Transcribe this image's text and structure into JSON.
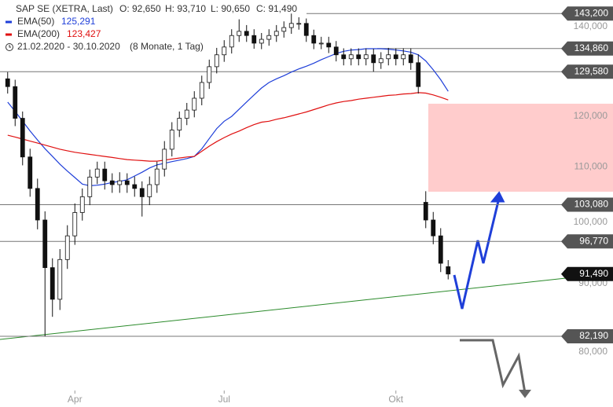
{
  "chart_data": {
    "type": "candlestick",
    "title": "SAP SE (XETRA, Last)",
    "header_labels": [
      "O: 92,650",
      "H: 93,710",
      "L: 90,650",
      "C: 91,490"
    ],
    "range_label": "21.02.2020 - 30.10.2020",
    "range_note": "(8 Monate, 1 Tag)",
    "log_scale": true,
    "ylim": [
      75080,
      146590
    ],
    "yticks": [
      {
        "value": 80000,
        "label": "80,000"
      },
      {
        "value": 90000,
        "label": "90,000"
      },
      {
        "value": 100000,
        "label": "100,000"
      },
      {
        "value": 110000,
        "label": "110,000"
      },
      {
        "value": 120000,
        "label": "120,000"
      },
      {
        "value": 130000,
        "label": "130,000"
      },
      {
        "value": 140000,
        "label": "140,000"
      }
    ],
    "levels": [
      {
        "value": 143200,
        "label": "143,200"
      },
      {
        "value": 134860,
        "label": "134,860"
      },
      {
        "value": 129580,
        "label": "129,580"
      },
      {
        "value": 103080,
        "label": "103,080"
      },
      {
        "value": 96770,
        "label": "96,770"
      },
      {
        "value": 82190,
        "label": "82,190"
      }
    ],
    "last_price": {
      "value": 91490,
      "label": "91,490"
    },
    "categories": [
      null,
      null,
      null,
      null,
      null,
      null,
      null,
      null,
      null,
      "Apr",
      null,
      null,
      null,
      null,
      null,
      null,
      null,
      null,
      null,
      null,
      null,
      null,
      null,
      null,
      null,
      null,
      null,
      null,
      null,
      "Jul",
      null,
      null,
      null,
      null,
      null,
      null,
      null,
      null,
      null,
      null,
      null,
      null,
      null,
      null,
      null,
      null,
      null,
      null,
      null,
      null,
      null,
      null,
      "Okt",
      null,
      null,
      null,
      null,
      null,
      null,
      null
    ],
    "open": [
      128000,
      126300,
      119600,
      111900,
      106000,
      100400,
      92500,
      87600,
      93800,
      97700,
      101700,
      104500,
      108100,
      109600,
      107400,
      106700,
      107400,
      106700,
      106000,
      104500,
      106700,
      109600,
      113400,
      117200,
      119600,
      121300,
      123800,
      127200,
      130700,
      133400,
      135200,
      137900,
      138900,
      137900,
      136100,
      137000,
      137900,
      138900,
      139800,
      140800,
      140800,
      137900,
      136100,
      136100,
      135200,
      133400,
      132500,
      133400,
      132500,
      133400,
      131600,
      132500,
      133400,
      132500,
      133400,
      131600,
      103500,
      100400,
      97700,
      92650
    ],
    "high": [
      129500,
      127800,
      121000,
      113500,
      107800,
      101900,
      94000,
      95500,
      99500,
      103300,
      106000,
      109500,
      111000,
      111000,
      108800,
      109000,
      108800,
      108200,
      107300,
      108200,
      111000,
      115000,
      118800,
      121000,
      122800,
      125300,
      128700,
      132300,
      135000,
      136800,
      139400,
      141800,
      140400,
      139400,
      138500,
      139400,
      140400,
      141300,
      143200,
      142300,
      142000,
      139300,
      137600,
      137600,
      136600,
      134900,
      134900,
      134900,
      134900,
      134800,
      134000,
      135000,
      134900,
      134900,
      134900,
      133500,
      105500,
      101800,
      99000,
      93710
    ],
    "low": [
      124800,
      118000,
      110300,
      104500,
      98800,
      82190,
      85000,
      86000,
      92300,
      96200,
      100300,
      103000,
      106800,
      105800,
      105200,
      105200,
      105200,
      104500,
      101000,
      103000,
      105200,
      108200,
      112000,
      115800,
      118200,
      119800,
      122300,
      125800,
      129200,
      131800,
      133700,
      136400,
      136400,
      134800,
      134700,
      135500,
      136400,
      137400,
      138300,
      139300,
      136400,
      134700,
      134700,
      133800,
      131900,
      131000,
      131000,
      131000,
      131000,
      129580,
      130200,
      131000,
      131000,
      131000,
      130000,
      124800,
      99000,
      96300,
      91800,
      90650
    ],
    "close": [
      126300,
      119600,
      111900,
      106000,
      100400,
      92500,
      87600,
      93800,
      97700,
      101700,
      104500,
      108100,
      109600,
      107400,
      106700,
      107400,
      106700,
      106000,
      104500,
      106700,
      109600,
      113400,
      117200,
      119600,
      121300,
      123800,
      127200,
      130700,
      133400,
      135200,
      137900,
      138900,
      137900,
      136100,
      137000,
      137900,
      138900,
      139800,
      140800,
      140800,
      137900,
      136100,
      136100,
      135200,
      133400,
      132500,
      133400,
      132500,
      133400,
      131600,
      132500,
      133400,
      132500,
      133400,
      131600,
      126300,
      100400,
      97700,
      93200,
      91490
    ],
    "lines": [
      {
        "name": "EMA(50)",
        "color": "#1f3fd9",
        "last_label": "125,291",
        "values": [
          122960,
          121000,
          119000,
          117000,
          115200,
          113500,
          112000,
          110500,
          109200,
          108000,
          106800,
          106500,
          106600,
          106800,
          107100,
          107300,
          107600,
          108300,
          109000,
          109800,
          110400,
          110700,
          111000,
          111300,
          111600,
          112000,
          113500,
          115500,
          117500,
          119000,
          120000,
          121500,
          123000,
          124500,
          126000,
          127200,
          128000,
          128700,
          129500,
          130200,
          130800,
          131500,
          132300,
          133000,
          133700,
          134200,
          134500,
          134600,
          134800,
          134800,
          134800,
          134700,
          134500,
          134300,
          134000,
          133400,
          132000,
          130000,
          127800,
          125291
        ]
      },
      {
        "name": "EMA(200)",
        "color": "#e01010",
        "last_label": "123,427",
        "values": [
          116170,
          115800,
          115400,
          115000,
          114600,
          114200,
          113800,
          113400,
          113100,
          112800,
          112600,
          112400,
          112200,
          112000,
          111800,
          111600,
          111400,
          111300,
          111200,
          111100,
          111100,
          111300,
          111500,
          111700,
          111900,
          112000,
          113000,
          114000,
          114900,
          115700,
          116400,
          117000,
          117700,
          118300,
          118800,
          119000,
          119400,
          119700,
          120100,
          120500,
          120900,
          121400,
          121900,
          122400,
          122800,
          123100,
          123300,
          123600,
          123800,
          124000,
          124200,
          124400,
          124500,
          124700,
          124800,
          125000,
          124900,
          124500,
          124000,
          123427
        ]
      }
    ]
  }
}
